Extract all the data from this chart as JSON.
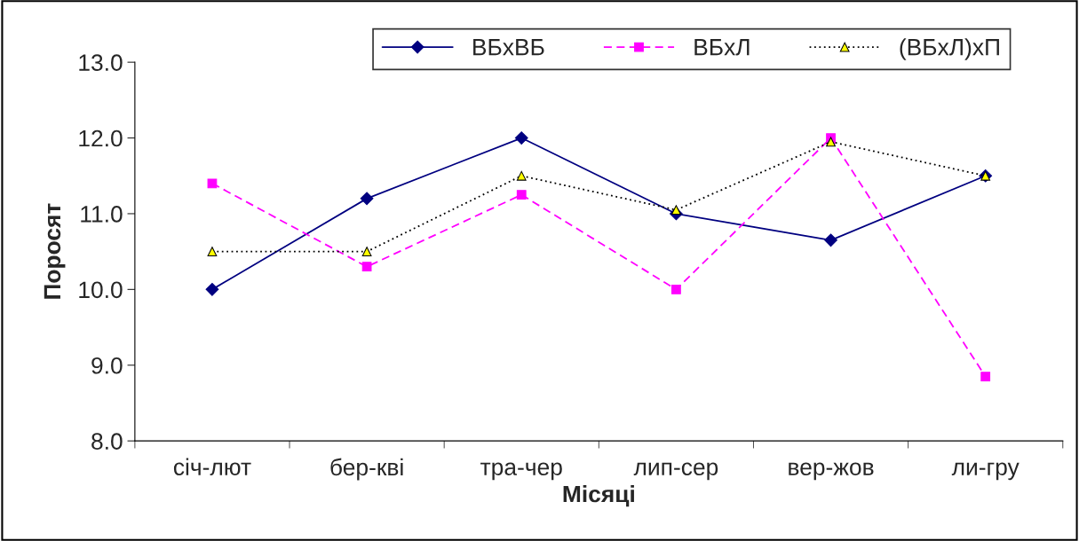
{
  "chart_data": {
    "type": "line",
    "xlabel": "Місяці",
    "ylabel": "Поросят",
    "categories": [
      "січ-лют",
      "бер-кві",
      "тра-чер",
      "лип-сер",
      "вер-жов",
      "ли-гру"
    ],
    "series": [
      {
        "name": "ВБхВБ",
        "color": "#000080",
        "marker": "diamond",
        "line_style": "solid",
        "values": [
          10.0,
          11.2,
          12.0,
          11.0,
          10.65,
          11.5
        ]
      },
      {
        "name": "ВБхЛ",
        "color": "#ff00ff",
        "marker": "square",
        "line_style": "dashed",
        "values": [
          11.4,
          10.3,
          11.25,
          10.0,
          12.0,
          8.85
        ]
      },
      {
        "name": "(ВБхЛ)хП",
        "color": "#000000",
        "marker": "triangle",
        "line_style": "dotted",
        "values": [
          10.5,
          10.5,
          11.5,
          11.05,
          11.95,
          11.5
        ]
      }
    ],
    "ylim": [
      8.0,
      13.0
    ],
    "yticks": [
      {
        "value": 8,
        "label": "8.0"
      },
      {
        "value": 9,
        "label": "9.0"
      },
      {
        "value": 10,
        "label": "10.0"
      },
      {
        "value": 11,
        "label": "11.0"
      },
      {
        "value": 12,
        "label": "12.0"
      },
      {
        "value": 13,
        "label": "13.0"
      }
    ],
    "grid": false,
    "legend": "top"
  }
}
